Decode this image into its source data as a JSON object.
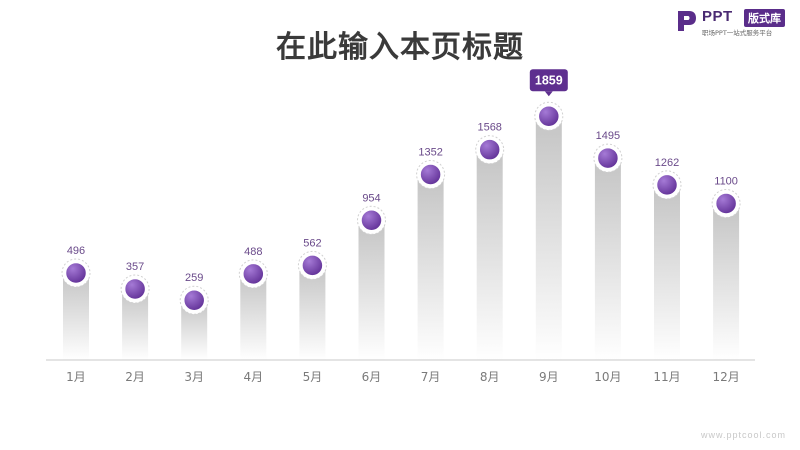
{
  "header": {
    "title": "在此输入本页标题"
  },
  "logo": {
    "brand": "PPT",
    "badge": "版式库",
    "tagline": "职场PPT一站式服务平台"
  },
  "watermark": "www.pptcool.com",
  "colors": {
    "accent": "#6e3aa6",
    "accent_light": "#9d6fd0",
    "callout": "#5e2f8f",
    "bar_top": "#c9c9c9",
    "bar_bottom": "#ffffff",
    "axis": "#c8c8c8",
    "label": "#6a4a8a",
    "tick": "#7a7a7a"
  },
  "chart_data": {
    "type": "bar",
    "title": "",
    "xlabel": "",
    "ylabel": "",
    "categories": [
      "1月",
      "2月",
      "3月",
      "4月",
      "5月",
      "6月",
      "7月",
      "8月",
      "9月",
      "10月",
      "11月",
      "12月"
    ],
    "values": [
      496,
      357,
      259,
      488,
      562,
      954,
      1352,
      1568,
      1859,
      1495,
      1262,
      1100
    ],
    "highlight_index": 8,
    "ylim": [
      0,
      2000
    ],
    "grid": false,
    "legend": "none"
  }
}
